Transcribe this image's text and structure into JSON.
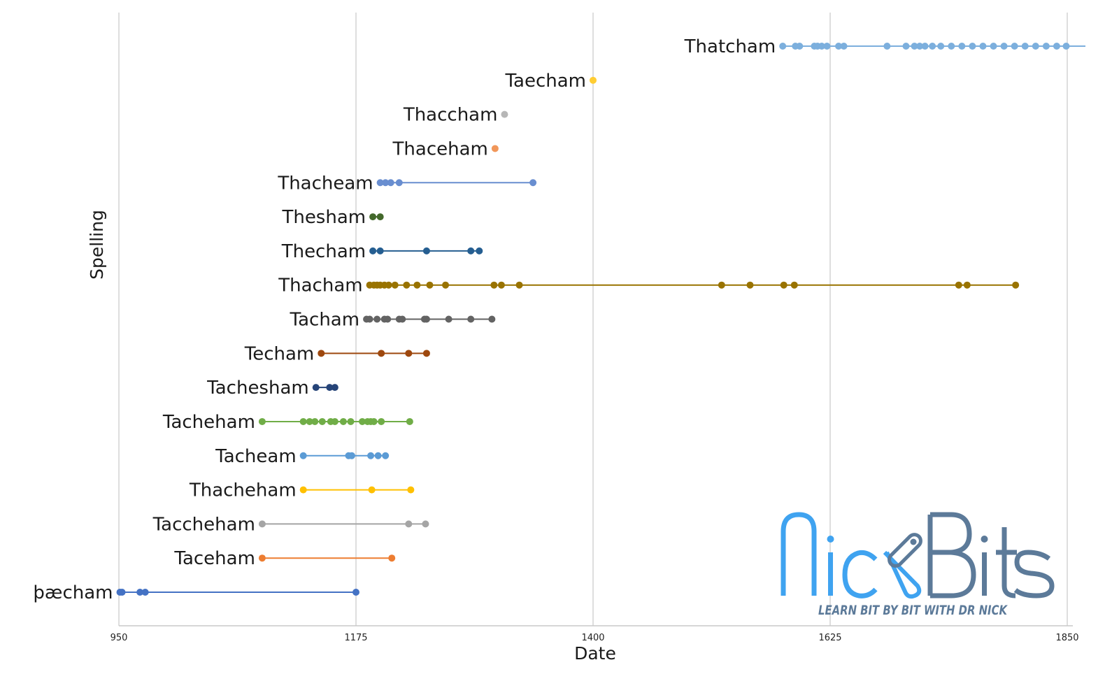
{
  "chart_data": {
    "type": "scatter",
    "title": "",
    "xlabel": "Date",
    "ylabel": "Spelling",
    "xlim": [
      950,
      1850
    ],
    "xticks": [
      950,
      1175,
      1400,
      1625,
      1850
    ],
    "grid": true,
    "series": [
      {
        "name": "þæcham",
        "color": "#4472C4",
        "x": [
          951,
          953,
          970,
          975,
          1175
        ]
      },
      {
        "name": "Taceham",
        "color": "#ED7D31",
        "x": [
          1086,
          1209
        ]
      },
      {
        "name": "Taccheham",
        "color": "#A5A5A5",
        "x": [
          1086,
          1225,
          1241
        ]
      },
      {
        "name": "Thacheham",
        "color": "#FFC000",
        "x": [
          1125,
          1190,
          1227
        ]
      },
      {
        "name": "Tacheam",
        "color": "#5B9BD5",
        "x": [
          1125,
          1168,
          1171,
          1189,
          1196,
          1203
        ]
      },
      {
        "name": "Tacheham",
        "color": "#70AD47",
        "x": [
          1086,
          1125,
          1131,
          1136,
          1143,
          1151,
          1155,
          1163,
          1170,
          1181,
          1186,
          1189,
          1192,
          1199,
          1226
        ]
      },
      {
        "name": "Tachesham",
        "color": "#264478",
        "x": [
          1137,
          1150,
          1155
        ]
      },
      {
        "name": "Techam",
        "color": "#9E480E",
        "x": [
          1142,
          1199,
          1225,
          1242
        ]
      },
      {
        "name": "Tacham",
        "color": "#636363",
        "x": [
          1185,
          1188,
          1195,
          1202,
          1205,
          1216,
          1219,
          1240,
          1242,
          1263,
          1284,
          1304
        ]
      },
      {
        "name": "Thacham",
        "color": "#997300",
        "x": [
          1188,
          1192,
          1195,
          1198,
          1202,
          1206,
          1212,
          1223,
          1233,
          1245,
          1260,
          1306,
          1313,
          1330,
          1522,
          1549,
          1581,
          1591,
          1747,
          1755,
          1801
        ]
      },
      {
        "name": "Thecham",
        "color": "#255E91",
        "x": [
          1191,
          1198,
          1242,
          1284,
          1292
        ]
      },
      {
        "name": "Thesham",
        "color": "#43682B",
        "x": [
          1191,
          1198
        ]
      },
      {
        "name": "Thacheam",
        "color": "#698ED0",
        "x": [
          1198,
          1203,
          1208,
          1216,
          1343
        ]
      },
      {
        "name": "Thaceham",
        "color": "#F1975A",
        "x": [
          1307
        ]
      },
      {
        "name": "Thaccham",
        "color": "#B7B7B7",
        "x": [
          1316
        ]
      },
      {
        "name": "Taecham",
        "color": "#FFCD33",
        "x": [
          1400
        ]
      },
      {
        "name": "Thatcham",
        "color": "#7CAFDD",
        "x": [
          1580,
          1592,
          1596,
          1610,
          1613,
          1617,
          1622,
          1633,
          1638,
          1679,
          1697,
          1705,
          1710,
          1715,
          1722,
          1730,
          1740,
          1750,
          1760,
          1770,
          1780,
          1790,
          1800,
          1810,
          1820,
          1830,
          1840,
          1849
        ],
        "extends_right": true
      }
    ]
  },
  "logo": {
    "title": "NickBits",
    "tagline": "LEARN BIT BY BIT WITH DR NICK",
    "color_primary": "#3FA3F0",
    "color_secondary": "#5C7A99"
  }
}
